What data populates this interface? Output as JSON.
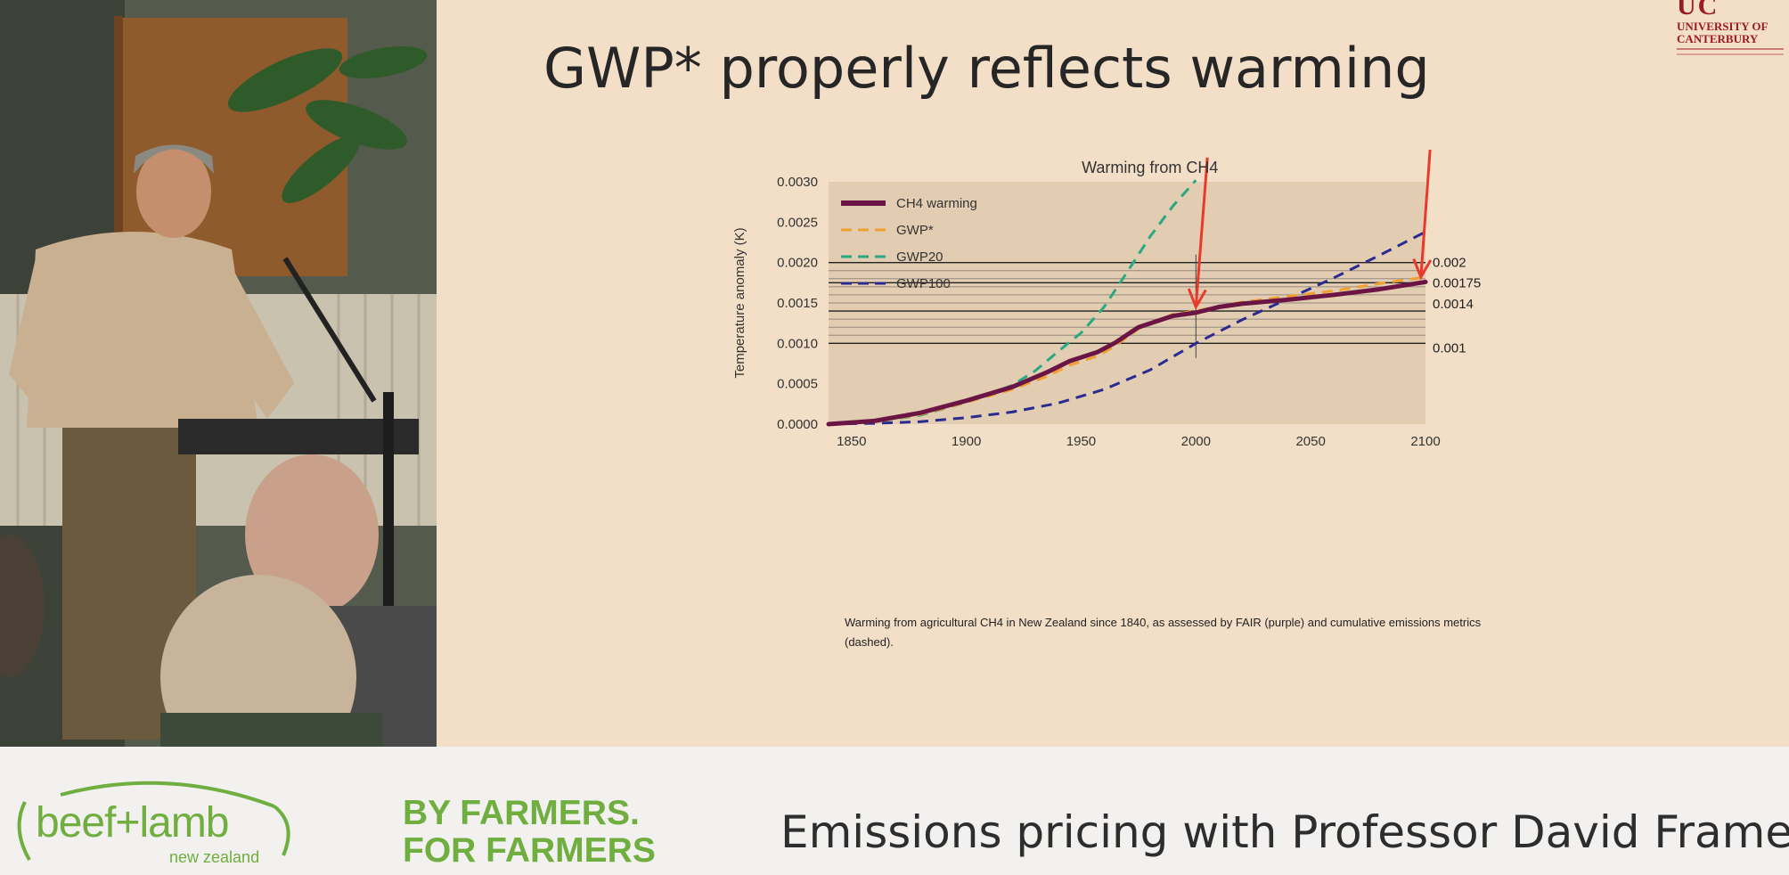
{
  "slide": {
    "title": "GWP* properly reflects warming",
    "logo_lines": [
      "UC",
      "UNIVERSITY OF",
      "CANTERBURY"
    ],
    "caption": "Warming from agricultural CH4 in New Zealand since 1840, as assessed by FAIR (purple) and cumulative emissions metrics (dashed)."
  },
  "chart_data": {
    "type": "line",
    "title": "Warming from CH4",
    "xlabel": "",
    "ylabel": "Temperature anomaly (K)",
    "xlim": [
      1840,
      2100
    ],
    "ylim": [
      0,
      0.003
    ],
    "x_ticks": [
      "1850",
      "1900",
      "1950",
      "2000",
      "2050",
      "2100"
    ],
    "y_ticks": [
      "0.0000",
      "0.0005",
      "0.0010",
      "0.0015",
      "0.0020",
      "0.0025",
      "0.0030"
    ],
    "legend_position": "top-left",
    "series": [
      {
        "name": "CH4 warming",
        "style": "solid",
        "color": "#6b1545",
        "x": [
          1840,
          1860,
          1880,
          1900,
          1920,
          1935,
          1945,
          1957,
          1965,
          1975,
          1990,
          2000,
          2010,
          2020,
          2040,
          2060,
          2080,
          2100
        ],
        "y": [
          0,
          4e-05,
          0.00014,
          0.00029,
          0.00046,
          0.00064,
          0.00078,
          0.00089,
          0.00101,
          0.0012,
          0.00134,
          0.00138,
          0.00145,
          0.00149,
          0.00154,
          0.0016,
          0.00167,
          0.00176
        ]
      },
      {
        "name": "GWP*",
        "style": "dashed",
        "color": "#f0a030",
        "x": [
          1840,
          1860,
          1880,
          1900,
          1920,
          1935,
          1945,
          1957,
          1965,
          1975,
          1990,
          2000,
          2010,
          2020,
          2040,
          2060,
          2080,
          2100
        ],
        "y": [
          0,
          3e-05,
          0.00012,
          0.00027,
          0.00043,
          0.00059,
          0.00073,
          0.00084,
          0.00097,
          0.00118,
          0.00136,
          0.0014,
          0.00146,
          0.00151,
          0.00158,
          0.00165,
          0.00174,
          0.00182
        ]
      },
      {
        "name": "GWP20",
        "style": "dashed",
        "color": "#2aa882",
        "x": [
          1840,
          1860,
          1880,
          1900,
          1920,
          1930,
          1940,
          1950,
          1960,
          1970,
          1980,
          1990,
          2000
        ],
        "y": [
          0,
          3e-05,
          0.00011,
          0.00027,
          0.00048,
          0.00066,
          0.0009,
          0.00113,
          0.00145,
          0.00188,
          0.00232,
          0.0027,
          0.00302
        ]
      },
      {
        "name": "GWP100",
        "style": "dashed",
        "color": "#2a2a90",
        "x": [
          1840,
          1860,
          1880,
          1900,
          1920,
          1940,
          1960,
          1980,
          2000,
          2020,
          2040,
          2060,
          2080,
          2100
        ],
        "y": [
          0,
          1e-05,
          3e-05,
          8e-05,
          0.00015,
          0.00026,
          0.00043,
          0.00067,
          0.001,
          0.00129,
          0.00155,
          0.00181,
          0.00209,
          0.00238
        ]
      }
    ],
    "reference_lines": [
      {
        "y": 0.002,
        "label": "0.002"
      },
      {
        "y": 0.00175,
        "label": "0.00175"
      },
      {
        "y": 0.0014,
        "label": "0.0014"
      },
      {
        "y": 0.001,
        "label": "0.001"
      }
    ],
    "extra_gridlines": [
      0.0019,
      0.0018,
      0.0017,
      0.0016,
      0.0015,
      0.0013,
      0.0012,
      0.0011
    ],
    "vertical_marker_x": 2000,
    "arrows": [
      {
        "color": "#e83a2a",
        "from": [
          2005,
          0.0033
        ],
        "to": [
          2000,
          0.00145
        ]
      },
      {
        "color": "#e83a2a",
        "from": [
          2102,
          0.0034
        ],
        "to": [
          2098,
          0.00182
        ]
      }
    ]
  },
  "camera": {
    "people": [
      "speaker",
      "audience-member-1",
      "audience-member-2"
    ]
  },
  "footer": {
    "brand_main": "beef+lamb",
    "brand_sub": "new zealand",
    "tagline_1": "BY FARMERS.",
    "tagline_2": "FOR FARMERS",
    "video_title": "Emissions pricing with Professor David Frame"
  }
}
